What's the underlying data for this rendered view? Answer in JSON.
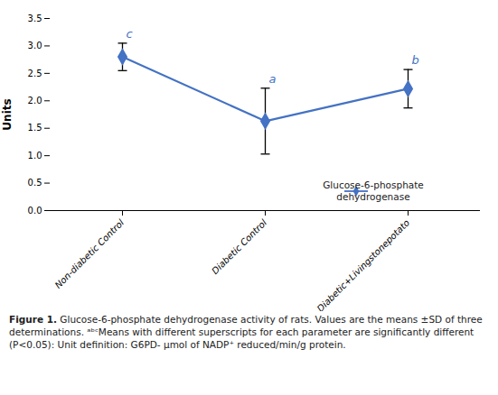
{
  "chart_data": {
    "type": "line",
    "categories": [
      "Non-diabetic Control",
      "Diabetic Control",
      "Diabetic+Livingstonepotato"
    ],
    "values": [
      2.8,
      1.63,
      2.22
    ],
    "errors": [
      0.25,
      0.6,
      0.35
    ],
    "annotations": [
      "c",
      "a",
      "b"
    ],
    "annotation_color": "#4472c4",
    "color": "#4472c4",
    "error_color": "#000000",
    "marker": "diamond",
    "ylabel": "Units",
    "ylim": [
      0,
      3.5
    ],
    "yticks": [
      0,
      0.5,
      1,
      1.5,
      2,
      2.5,
      3,
      3.5
    ],
    "legend_label": "Glucose-6-phosphate\ndehydrogenase",
    "legend": "lower right",
    "caption_title": "Figure 1.",
    "caption": "Glucose-6-phosphate dehydrogenase activity of rats. Values are the means ±SD of three determinations. ᵃᵇᶜMeans with different superscripts for each parameter are significantly different (P<0.05): Unit definition: G6PD- μmol of NADP⁺ reduced/min/g protein.",
    "grid": false
  }
}
